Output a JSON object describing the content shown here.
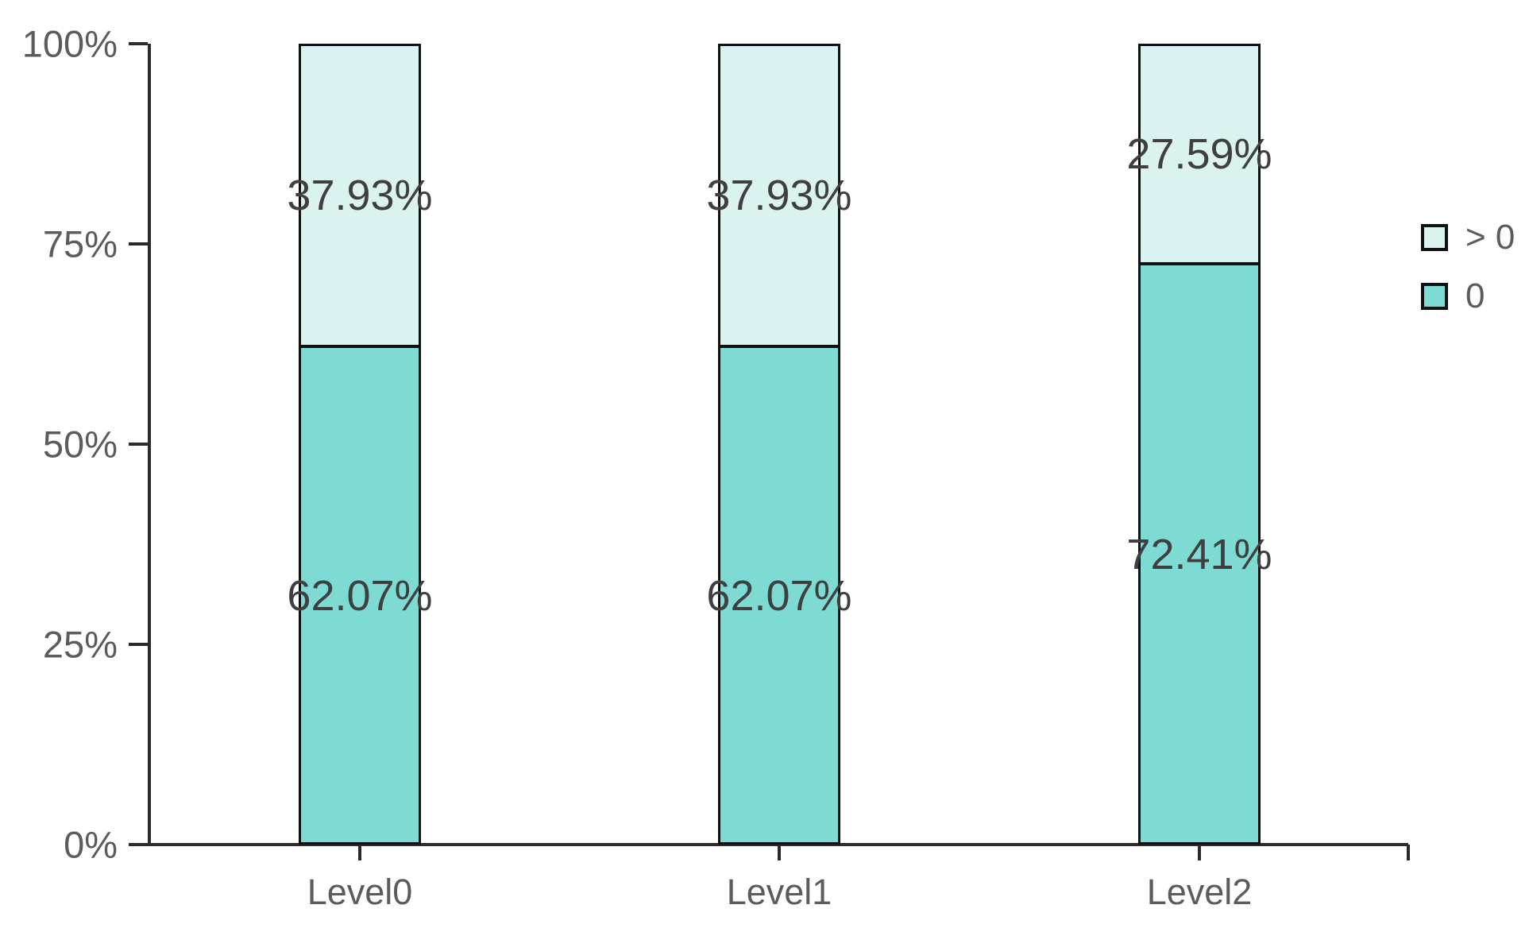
{
  "chart_data": {
    "type": "bar",
    "stacked": true,
    "unit": "%",
    "title": "",
    "xlabel": "",
    "ylabel": "",
    "categories": [
      "Level0",
      "Level1",
      "Level2"
    ],
    "series": [
      {
        "name": "> 0",
        "color": "#daf2f0",
        "values": [
          37.93,
          37.93,
          27.59
        ],
        "labels": [
          "37.93%",
          "37.93%",
          "27.59%"
        ]
      },
      {
        "name": "0",
        "color": "#7ddbd4",
        "values": [
          62.07,
          62.07,
          72.41
        ],
        "labels": [
          "62.07%",
          "62.07%",
          "72.41%"
        ]
      }
    ],
    "y_axis": {
      "min": 0,
      "max": 100,
      "tick_values": [
        0,
        25,
        50,
        75,
        100
      ],
      "tick_labels": [
        "0%",
        "25%",
        "50%",
        "75%",
        "100%"
      ]
    },
    "legend": {
      "position": "right",
      "entries": [
        {
          "label": "> 0",
          "color": "#daf2f0"
        },
        {
          "label": "0",
          "color": "#7ddbd4"
        }
      ]
    },
    "grid": false,
    "colors": {
      "bar_border": "#111111",
      "axis": "#2b2b2b",
      "tick_text": "#5c5c5c",
      "value_text": "#3f3f3f",
      "background": "#ffffff"
    }
  }
}
